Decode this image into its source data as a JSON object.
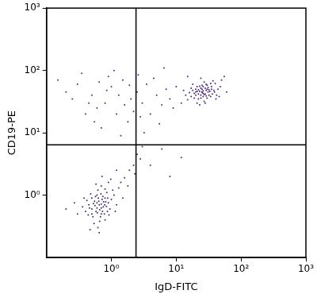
{
  "chart_data": {
    "type": "scatter",
    "x_label": "IgD-FITC",
    "y_label": "CD19-PE",
    "log": true,
    "grid": false,
    "marker": "circle",
    "color": "#4b2a7b",
    "xlim": [
      0.1,
      1000
    ],
    "ylim": [
      0.1,
      1000
    ],
    "xticks": [
      {
        "value": 1,
        "label": "10⁰"
      },
      {
        "value": 10,
        "label": "10¹"
      },
      {
        "value": 100,
        "label": "10²"
      },
      {
        "value": 1000,
        "label": "10³"
      }
    ],
    "yticks": [
      {
        "value": 1,
        "label": "10⁰"
      },
      {
        "value": 10,
        "label": "10¹"
      },
      {
        "value": 100,
        "label": "10²"
      },
      {
        "value": 1000,
        "label": "10³"
      }
    ],
    "quadrant_lines": {
      "x": 2.4,
      "y": 6.4
    },
    "points": [
      [
        0.65,
        0.7
      ],
      [
        0.5,
        0.6
      ],
      [
        0.8,
        0.9
      ],
      [
        0.7,
        0.5
      ],
      [
        0.55,
        0.8
      ],
      [
        0.6,
        1.0
      ],
      [
        0.75,
        0.65
      ],
      [
        0.9,
        0.75
      ],
      [
        0.45,
        0.7
      ],
      [
        0.68,
        0.45
      ],
      [
        0.58,
        0.55
      ],
      [
        0.72,
        0.85
      ],
      [
        0.62,
        1.2
      ],
      [
        0.85,
        1.1
      ],
      [
        0.5,
        0.9
      ],
      [
        0.4,
        0.55
      ],
      [
        0.95,
        0.6
      ],
      [
        0.66,
        0.38
      ],
      [
        0.78,
        0.5
      ],
      [
        0.52,
        0.45
      ],
      [
        0.6,
        0.62
      ],
      [
        0.7,
        0.72
      ],
      [
        0.64,
        0.8
      ],
      [
        0.56,
        0.68
      ],
      [
        0.82,
        0.78
      ],
      [
        0.74,
        0.95
      ],
      [
        0.48,
        1.05
      ],
      [
        0.88,
        0.9
      ],
      [
        1.0,
        0.85
      ],
      [
        1.1,
        1.0
      ],
      [
        0.42,
        0.82
      ],
      [
        0.36,
        0.65
      ],
      [
        0.3,
        0.5
      ],
      [
        0.62,
        0.3
      ],
      [
        0.54,
        0.35
      ],
      [
        0.8,
        0.4
      ],
      [
        0.92,
        0.48
      ],
      [
        1.2,
        0.7
      ],
      [
        1.3,
        1.3
      ],
      [
        0.7,
        1.4
      ],
      [
        0.58,
        1.5
      ],
      [
        0.9,
        1.6
      ],
      [
        1.05,
        1.2
      ],
      [
        0.66,
        0.58
      ],
      [
        0.6,
        0.75
      ],
      [
        0.7,
        0.62
      ],
      [
        0.76,
        0.78
      ],
      [
        0.5,
        0.5
      ],
      [
        0.46,
        0.62
      ],
      [
        0.84,
        0.66
      ],
      [
        0.63,
        0.9
      ],
      [
        0.69,
        1.05
      ],
      [
        0.57,
        0.95
      ],
      [
        0.73,
        0.55
      ],
      [
        0.61,
        0.52
      ],
      [
        0.53,
        0.73
      ],
      [
        0.79,
        0.7
      ],
      [
        0.87,
        0.55
      ],
      [
        0.44,
        0.48
      ],
      [
        0.38,
        0.9
      ],
      [
        1.15,
        0.55
      ],
      [
        0.65,
        0.25
      ],
      [
        0.47,
        0.28
      ],
      [
        0.27,
        0.75
      ],
      [
        0.2,
        0.6
      ],
      [
        1.5,
        0.9
      ],
      [
        1.4,
        1.6
      ],
      [
        0.98,
        1.8
      ],
      [
        0.72,
        2.0
      ],
      [
        0.8,
        1.25
      ],
      [
        1.6,
        1.9
      ],
      [
        1.9,
        2.5
      ],
      [
        2.2,
        3.0
      ],
      [
        2.5,
        4.5
      ],
      [
        2.3,
        2.2
      ],
      [
        3.0,
        6.0
      ],
      [
        1.8,
        1.4
      ],
      [
        2.8,
        3.8
      ],
      [
        4,
        3
      ],
      [
        8,
        2
      ],
      [
        6,
        5.5
      ],
      [
        12,
        4
      ],
      [
        1.2,
        2.5
      ],
      [
        0.3,
        60
      ],
      [
        0.5,
        40
      ],
      [
        0.8,
        30
      ],
      [
        1.0,
        55
      ],
      [
        1.2,
        20
      ],
      [
        1.5,
        70
      ],
      [
        2.0,
        35
      ],
      [
        0.6,
        25
      ],
      [
        0.9,
        80
      ],
      [
        1.8,
        15
      ],
      [
        2.5,
        45
      ],
      [
        3.0,
        30
      ],
      [
        0.4,
        20
      ],
      [
        1.3,
        40
      ],
      [
        0.7,
        12
      ],
      [
        2.2,
        22
      ],
      [
        1.1,
        100
      ],
      [
        0.25,
        35
      ],
      [
        0.35,
        90
      ],
      [
        3.5,
        60
      ],
      [
        4.0,
        20
      ],
      [
        5.0,
        40
      ],
      [
        6.0,
        28
      ],
      [
        7.0,
        50
      ],
      [
        4.5,
        75
      ],
      [
        1.6,
        28
      ],
      [
        0.55,
        15
      ],
      [
        0.2,
        45
      ],
      [
        0.15,
        70
      ],
      [
        2.8,
        18
      ],
      [
        5.5,
        14
      ],
      [
        8,
        35
      ],
      [
        3.2,
        10
      ],
      [
        1.4,
        9
      ],
      [
        0.85,
        48
      ],
      [
        1.9,
        58
      ],
      [
        0.45,
        30
      ],
      [
        2.6,
        85
      ],
      [
        0.65,
        65
      ],
      [
        9,
        25
      ],
      [
        10,
        55
      ],
      [
        12,
        30
      ],
      [
        15,
        80
      ],
      [
        6.5,
        110
      ],
      [
        25,
        45
      ],
      [
        20,
        40
      ],
      [
        30,
        50
      ],
      [
        22,
        35
      ],
      [
        28,
        42
      ],
      [
        18,
        48
      ],
      [
        35,
        55
      ],
      [
        26,
        38
      ],
      [
        24,
        52
      ],
      [
        32,
        40
      ],
      [
        16,
        44
      ],
      [
        21,
        55
      ],
      [
        29,
        60
      ],
      [
        27,
        32
      ],
      [
        19,
        36
      ],
      [
        38,
        48
      ],
      [
        23,
        46
      ],
      [
        31,
        45
      ],
      [
        25,
        58
      ],
      [
        34,
        38
      ],
      [
        14,
        40
      ],
      [
        17,
        52
      ],
      [
        40,
        62
      ],
      [
        44,
        50
      ],
      [
        22,
        42
      ],
      [
        26,
        47
      ],
      [
        30,
        36
      ],
      [
        28,
        52
      ],
      [
        20,
        50
      ],
      [
        24,
        40
      ],
      [
        33,
        46
      ],
      [
        36,
        42
      ],
      [
        27,
        65
      ],
      [
        21,
        30
      ],
      [
        15,
        34
      ],
      [
        42,
        40
      ],
      [
        48,
        55
      ],
      [
        18,
        60
      ],
      [
        23,
        28
      ],
      [
        37,
        68
      ],
      [
        29,
        48
      ],
      [
        25,
        44
      ],
      [
        22,
        49
      ],
      [
        27,
        41
      ],
      [
        31,
        53
      ],
      [
        19,
        43
      ],
      [
        26,
        55
      ],
      [
        24,
        36
      ],
      [
        35,
        50
      ],
      [
        17,
        38
      ],
      [
        39,
        45
      ],
      [
        30,
        58
      ],
      [
        50,
        70
      ],
      [
        13,
        48
      ],
      [
        28,
        30
      ],
      [
        34,
        62
      ],
      [
        60,
        45
      ],
      [
        46,
        38
      ],
      [
        23,
        56
      ],
      [
        21,
        46
      ],
      [
        26,
        43
      ],
      [
        29,
        39
      ],
      [
        32,
        49
      ],
      [
        20,
        45
      ],
      [
        25,
        50
      ],
      [
        55,
        80
      ],
      [
        24,
        75
      ],
      [
        41,
        35
      ]
    ]
  }
}
